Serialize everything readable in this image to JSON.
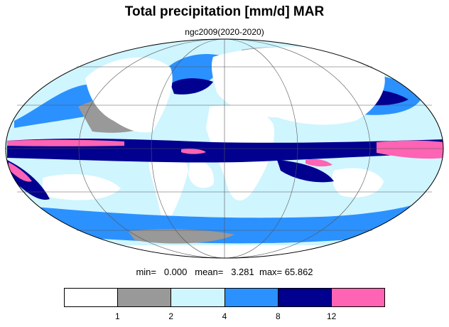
{
  "title": "Total precipitation [mm/d] MAR",
  "subtitle": "ngc2009(2020-2020)",
  "stats": {
    "min_label": "min=",
    "min_value": "0.000",
    "mean_label": "mean=",
    "mean_value": "3.281",
    "max_label": "max=",
    "max_value": "65.862"
  },
  "projection": "Mollweide",
  "colors": {
    "bin_0_1": "#ffffff",
    "bin_1_2": "#999999",
    "bin_2_4": "#cff5ff",
    "bin_4_8": "#2b91ff",
    "bin_8_12": "#02008f",
    "bin_12_plus": "#ff63b3"
  },
  "colorbar": {
    "levels": [
      "1",
      "2",
      "4",
      "8",
      "12"
    ],
    "swatches": [
      "#ffffff",
      "#999999",
      "#cff5ff",
      "#2b91ff",
      "#02008f",
      "#ff63b3"
    ]
  }
}
